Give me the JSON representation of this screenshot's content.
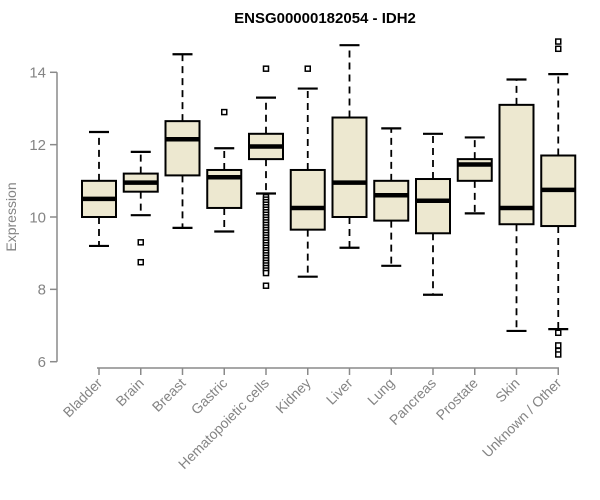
{
  "title": "ENSG00000182054 - IDH2",
  "chart_data": {
    "type": "boxplot",
    "title": "ENSG00000182054 - IDH2",
    "xlabel": "",
    "ylabel": "Expression",
    "ylim": [
      6,
      14
    ],
    "yticks": [
      6,
      8,
      10,
      12,
      14
    ],
    "grid": false,
    "legend": "none",
    "categories": [
      "Bladder",
      "Brain",
      "Breast",
      "Gastric",
      "Hematopoietic cells",
      "Kidney",
      "Liver",
      "Lung",
      "Pancreas",
      "Prostate",
      "Skin",
      "Unknown / Other"
    ],
    "series": [
      {
        "name": "Bladder",
        "whisker_low": 9.2,
        "q1": 10.0,
        "median": 10.5,
        "q3": 11.0,
        "whisker_high": 12.35,
        "outliers": []
      },
      {
        "name": "Brain",
        "whisker_low": 10.05,
        "q1": 10.7,
        "median": 10.95,
        "q3": 11.2,
        "whisker_high": 11.8,
        "outliers": [
          9.3,
          8.75
        ]
      },
      {
        "name": "Breast",
        "whisker_low": 9.7,
        "q1": 11.15,
        "median": 12.15,
        "q3": 12.65,
        "whisker_high": 14.5,
        "outliers": []
      },
      {
        "name": "Gastric",
        "whisker_low": 9.6,
        "q1": 10.25,
        "median": 11.1,
        "q3": 11.3,
        "whisker_high": 11.9,
        "outliers": [
          12.9
        ]
      },
      {
        "name": "Hematopoietic cells",
        "whisker_low": 10.65,
        "q1": 11.6,
        "median": 11.95,
        "q3": 12.3,
        "whisker_high": 13.3,
        "outliers": [
          14.1,
          10.55,
          10.48,
          10.41,
          10.34,
          10.27,
          10.2,
          10.13,
          10.06,
          9.99,
          9.92,
          9.85,
          9.78,
          9.71,
          9.64,
          9.57,
          9.5,
          9.43,
          9.36,
          9.29,
          9.22,
          9.15,
          9.08,
          9.01,
          8.94,
          8.87,
          8.8,
          8.73,
          8.66,
          8.59,
          8.52,
          8.45,
          8.1
        ]
      },
      {
        "name": "Kidney",
        "whisker_low": 8.35,
        "q1": 9.65,
        "median": 10.25,
        "q3": 11.3,
        "whisker_high": 13.55,
        "outliers": [
          14.1
        ]
      },
      {
        "name": "Liver",
        "whisker_low": 9.15,
        "q1": 10.0,
        "median": 10.95,
        "q3": 12.75,
        "whisker_high": 14.75,
        "outliers": []
      },
      {
        "name": "Lung",
        "whisker_low": 8.65,
        "q1": 9.9,
        "median": 10.6,
        "q3": 11.0,
        "whisker_high": 12.45,
        "outliers": []
      },
      {
        "name": "Pancreas",
        "whisker_low": 7.85,
        "q1": 9.55,
        "median": 10.45,
        "q3": 11.05,
        "whisker_high": 12.3,
        "outliers": []
      },
      {
        "name": "Prostate",
        "whisker_low": 10.1,
        "q1": 11.0,
        "median": 11.45,
        "q3": 11.6,
        "whisker_high": 12.2,
        "outliers": []
      },
      {
        "name": "Skin",
        "whisker_low": 6.85,
        "q1": 9.8,
        "median": 10.25,
        "q3": 13.1,
        "whisker_high": 13.8,
        "outliers": []
      },
      {
        "name": "Unknown / Other",
        "whisker_low": 6.9,
        "q1": 9.75,
        "median": 10.75,
        "q3": 11.7,
        "whisker_high": 13.95,
        "outliers": [
          14.85,
          14.65,
          6.8,
          6.45,
          6.3,
          6.2
        ]
      }
    ],
    "colors": {
      "box_fill": "#EDE8D0",
      "box_border": "#000000",
      "median": "#000000",
      "whisker": "#000000",
      "outlier_border": "#000000",
      "outlier_fill": "#FFFFFF",
      "axis": "#8A8A8A",
      "tick_label": "#848484",
      "title": "#000000",
      "background": "#FFFFFF"
    }
  }
}
